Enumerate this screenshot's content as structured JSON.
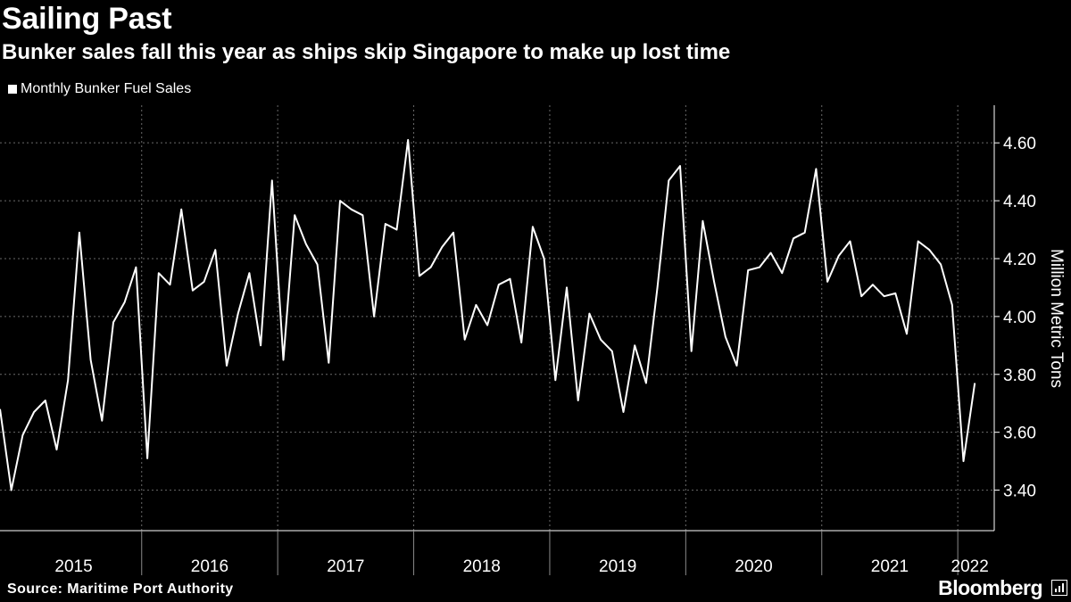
{
  "header": {
    "title": "Sailing Past",
    "subtitle": "Bunker sales fall this year as ships skip Singapore to make up lost time"
  },
  "footer": {
    "source": "Source: Maritime Port Authority",
    "brand": "Bloomberg"
  },
  "colors": {
    "background": "#000000",
    "line": "#ffffff",
    "grid": "#6a6a6a"
  },
  "chart_data": {
    "type": "line",
    "title": "Sailing Past",
    "subtitle": "Bunker sales fall this year as ships skip Singapore to make up lost time",
    "xlabel": "",
    "ylabel": "Million Metric Tons",
    "ylim": [
      3.26,
      4.73
    ],
    "yticks": [
      3.4,
      3.6,
      3.8,
      4.0,
      4.2,
      4.4,
      4.6
    ],
    "ytick_labels": [
      "3.40",
      "3.60",
      "3.80",
      "4.00",
      "4.20",
      "4.40",
      "4.60"
    ],
    "x_year_labels": [
      "2015",
      "2016",
      "2017",
      "2018",
      "2019",
      "2020",
      "2021",
      "2022"
    ],
    "grid": true,
    "legend": "top-left",
    "series": [
      {
        "name": "Monthly Bunker Fuel Sales",
        "start": "2014-12",
        "values": [
          3.68,
          3.4,
          3.59,
          3.67,
          3.71,
          3.54,
          3.78,
          4.29,
          3.85,
          3.64,
          3.98,
          4.05,
          4.17,
          3.51,
          4.15,
          4.11,
          4.37,
          4.09,
          4.12,
          4.23,
          3.83,
          4.01,
          4.15,
          3.9,
          4.47,
          3.85,
          4.35,
          4.25,
          4.18,
          3.84,
          4.4,
          4.37,
          4.35,
          4.0,
          4.32,
          4.3,
          4.61,
          4.14,
          4.17,
          4.24,
          4.29,
          3.92,
          4.04,
          3.97,
          4.11,
          4.13,
          3.91,
          4.31,
          4.2,
          3.78,
          4.1,
          3.71,
          4.01,
          3.92,
          3.88,
          3.67,
          3.9,
          3.77,
          4.1,
          4.47,
          4.52,
          3.88,
          4.33,
          4.12,
          3.93,
          3.83,
          4.16,
          4.17,
          4.22,
          4.15,
          4.27,
          4.29,
          4.51,
          4.12,
          4.21,
          4.26,
          4.07,
          4.11,
          4.07,
          4.08,
          3.94,
          4.26,
          4.23,
          4.18,
          4.04,
          3.5,
          3.77
        ]
      }
    ]
  }
}
